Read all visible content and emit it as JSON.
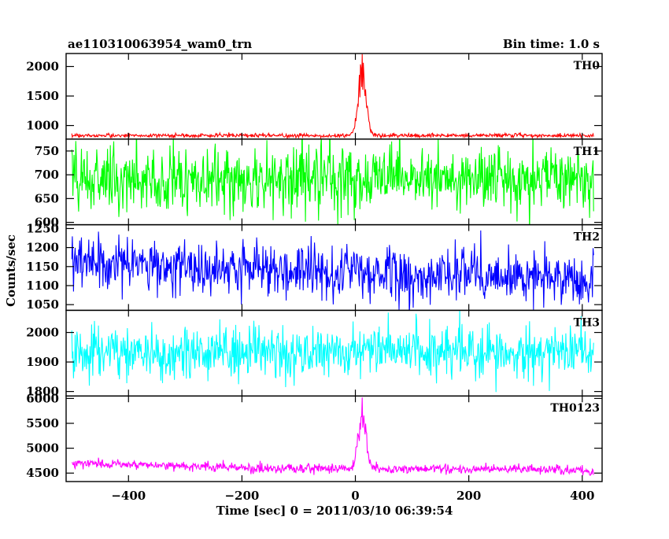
{
  "header": {
    "left_title": "ae110310063954_wam0_trn",
    "right_title": "Bin time: 1.0 s"
  },
  "chart_data": {
    "type": "line",
    "xlabel": "Time [sec] 0 = 2011/03/10 06:39:54",
    "ylabel": "Counts/sec",
    "xlim": [
      -510,
      435
    ],
    "x_ticks": [
      -400,
      -200,
      0,
      200,
      400
    ],
    "x_range_data": [
      -500,
      420
    ],
    "bin_time_s": 1.0,
    "panels": [
      {
        "name": "TH0",
        "color": "#ff0000",
        "ylim": [
          770,
          2220
        ],
        "y_ticks": [
          1000,
          1500,
          2000
        ],
        "baseline": 830,
        "noise": 18,
        "trend": [],
        "peak": {
          "x": 12,
          "value": 2210,
          "width": 7
        }
      },
      {
        "name": "TH1",
        "color": "#00ff00",
        "ylim": [
          595,
          775
        ],
        "y_ticks": [
          600,
          650,
          700,
          750
        ],
        "baseline": 690,
        "noise": 34,
        "trend": [],
        "peak": null
      },
      {
        "name": "TH2",
        "color": "#0000ff",
        "ylim": [
          1035,
          1260
        ],
        "y_ticks": [
          1050,
          1100,
          1150,
          1200,
          1250
        ],
        "baseline": 1130,
        "noise": 34,
        "trend": [
          [
            -500,
            1165
          ],
          [
            -150,
            1140
          ],
          [
            420,
            1118
          ]
        ],
        "peak": null
      },
      {
        "name": "TH3",
        "color": "#00ffff",
        "ylim": [
          1785,
          2075
        ],
        "y_ticks": [
          1800,
          1900,
          2000
        ],
        "baseline": 1935,
        "noise": 45,
        "trend": [],
        "peak": null
      },
      {
        "name": "TH0123",
        "color": "#ff00ff",
        "ylim": [
          4330,
          6050
        ],
        "y_ticks": [
          4500,
          5000,
          5500,
          6000
        ],
        "baseline": 4600,
        "noise": 45,
        "trend": [
          [
            -500,
            4700
          ],
          [
            -150,
            4600
          ],
          [
            420,
            4560
          ]
        ],
        "peak": {
          "x": 12,
          "value": 6020,
          "width": 7
        }
      }
    ]
  }
}
